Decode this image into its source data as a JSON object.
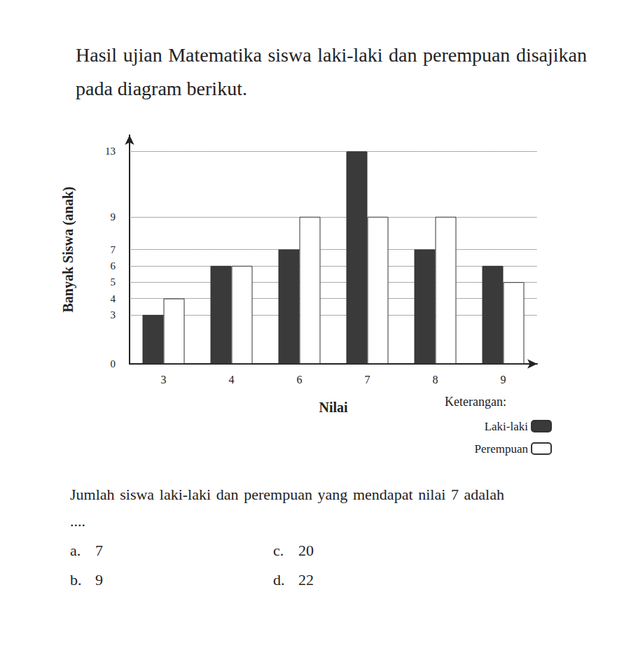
{
  "intro": "Hasil ujian Matematika siswa laki-laki dan perempuan disajikan pada diagram berikut.",
  "chart_data": {
    "type": "bar",
    "x_label": "Nilai",
    "y_label": "Banyak Siswa (anak)",
    "legend_title": "Keterangan:",
    "categories": [
      "3",
      "4",
      "6",
      "7",
      "8",
      "9"
    ],
    "series": [
      {
        "name": "Laki-laki",
        "color": "#3a3a3a",
        "values": [
          3,
          6,
          7,
          13,
          7,
          6
        ]
      },
      {
        "name": "Perempuan",
        "color": "#ffffff",
        "values": [
          4,
          6,
          9,
          9,
          9,
          5
        ]
      }
    ],
    "ylim": [
      0,
      14
    ],
    "yticks": [
      0,
      3,
      4,
      5,
      6,
      7,
      9,
      13
    ],
    "grid": true,
    "legend": "bottom-right"
  },
  "question": "Jumlah siswa laki-laki dan perempuan yang mendapat nilai 7 adalah ....",
  "options": [
    {
      "letter": "a.",
      "text": "7"
    },
    {
      "letter": "b.",
      "text": "9"
    },
    {
      "letter": "c.",
      "text": "20"
    },
    {
      "letter": "d.",
      "text": "22"
    }
  ]
}
